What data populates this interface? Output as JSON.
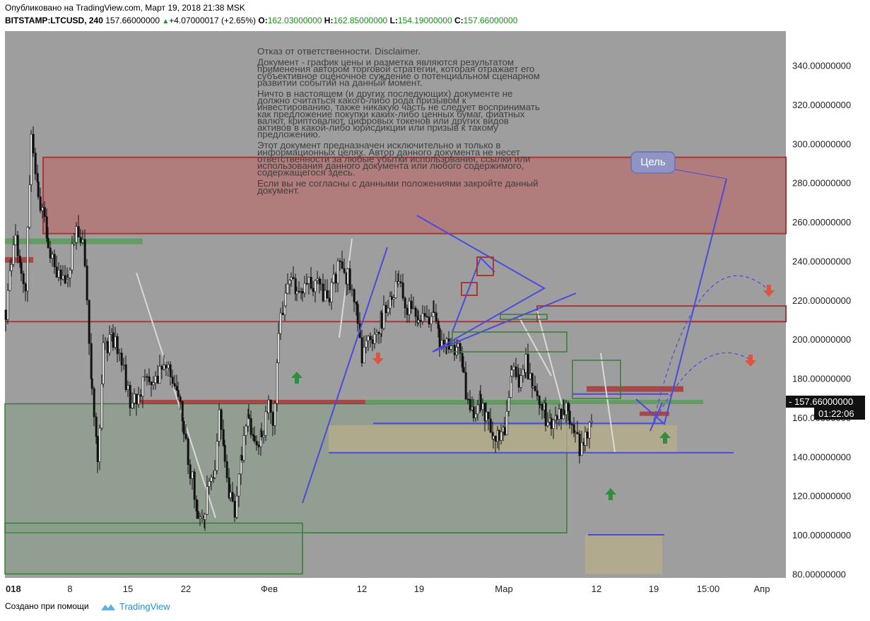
{
  "header": {
    "published": "Опубликовано на TradingView.com, Март 19, 2018 21:38 MSK",
    "symbol": "BITSTAMP:LTCUSD, 240",
    "last": "157.66000000",
    "change": "+4.07000017 (+2.65%)",
    "o_label": "O:",
    "o": "162.03000000",
    "h_label": "H:",
    "h": "162.85000000",
    "l_label": "L:",
    "l": "154.19000000",
    "c_label": "C:",
    "c": "157.66000000"
  },
  "disclaimer": [
    "Отказ от ответственности. Disclaimer.",
    "",
    "Документ - график цены и разметка являются результатом",
    "применения автором торговой стратегии, которая отражает его",
    "субъективное оценочное суждение о потенциальном сценарном",
    "развитии событий на данный момент.",
    "",
    "Ничто в настоящем (и других последующих) документе не",
    "должно считаться какого-либо рода призывом к",
    "инвестированию, также никакую часть не следует воспринимать",
    "как предложение покупки каких-либо ценных бумаг, фиатных",
    "валют, криптовалют, цифровых токенов или других видов",
    "активов в какой-либо юрисдикции или призыв к такому",
    "предложению.",
    "",
    "Этот документ предназначен исключительно и только в",
    "информационных целях. Автор данного документа не несет",
    "ответственности за любые убытки использования, ссылки или",
    "использования данного документа или любого содержимого,",
    "содержащегося здесь.",
    "",
    "Если вы не согласны с данными положениями закройте данный",
    "документ."
  ],
  "target_label": "Цель",
  "price_tag": "157.66000000",
  "time_tag": "01:22:06",
  "footer": {
    "created": "Создано при помощи",
    "brand": "TradingView"
  },
  "colors": {
    "plot_bg": "#9e9e9e",
    "red_zone": "#b07c7c",
    "red_line": "#a83838",
    "green_line": "#3a7a3a",
    "blue": "#4a4adc",
    "yellow_zone": "#b8ae8a",
    "green_arrow": "#2f8f3f",
    "red_arrow": "#e0543e"
  },
  "chart_data": {
    "type": "candlestick",
    "yticks": [
      "340.00000000",
      "320.00000000",
      "300.00000000",
      "280.00000000",
      "260.00000000",
      "240.00000000",
      "220.00000000",
      "200.00000000",
      "180.00000000",
      "160.00000000",
      "140.00000000",
      "120.00000000",
      "100.00000000",
      "80.00000000"
    ],
    "ylim": [
      75,
      353
    ],
    "xticks": [
      "018",
      "8",
      "15",
      "22",
      "Фев",
      "12",
      "19",
      "Мар",
      "12",
      "19",
      "15:00",
      "Апр"
    ],
    "close_path": [
      [
        0,
        215
      ],
      [
        8,
        240
      ],
      [
        14,
        250
      ],
      [
        22,
        232
      ],
      [
        28,
        228
      ],
      [
        36,
        300
      ],
      [
        46,
        275
      ],
      [
        60,
        250
      ],
      [
        72,
        235
      ],
      [
        88,
        232
      ],
      [
        100,
        260
      ],
      [
        112,
        242
      ],
      [
        122,
        170
      ],
      [
        130,
        138
      ],
      [
        138,
        195
      ],
      [
        152,
        200
      ],
      [
        164,
        190
      ],
      [
        176,
        168
      ],
      [
        188,
        172
      ],
      [
        200,
        180
      ],
      [
        212,
        178
      ],
      [
        224,
        187
      ],
      [
        236,
        180
      ],
      [
        244,
        172
      ],
      [
        252,
        150
      ],
      [
        264,
        128
      ],
      [
        272,
        108
      ],
      [
        282,
        112
      ],
      [
        288,
        130
      ],
      [
        296,
        128
      ],
      [
        302,
        160
      ],
      [
        310,
        138
      ],
      [
        318,
        118
      ],
      [
        324,
        108
      ],
      [
        334,
        140
      ],
      [
        344,
        160
      ],
      [
        352,
        145
      ],
      [
        362,
        150
      ],
      [
        372,
        165
      ],
      [
        378,
        152
      ],
      [
        386,
        205
      ],
      [
        396,
        222
      ],
      [
        404,
        232
      ],
      [
        412,
        222
      ],
      [
        420,
        225
      ],
      [
        432,
        230
      ],
      [
        446,
        225
      ],
      [
        458,
        220
      ],
      [
        470,
        238
      ],
      [
        484,
        232
      ],
      [
        498,
        210
      ],
      [
        504,
        190
      ],
      [
        516,
        200
      ],
      [
        532,
        210
      ],
      [
        546,
        222
      ],
      [
        556,
        228
      ],
      [
        568,
        216
      ],
      [
        584,
        212
      ],
      [
        596,
        208
      ],
      [
        606,
        215
      ],
      [
        614,
        198
      ],
      [
        624,
        202
      ],
      [
        632,
        192
      ],
      [
        640,
        200
      ],
      [
        648,
        183
      ],
      [
        654,
        165
      ],
      [
        662,
        162
      ],
      [
        672,
        168
      ],
      [
        680,
        158
      ],
      [
        690,
        150
      ],
      [
        698,
        148
      ],
      [
        706,
        155
      ],
      [
        716,
        184
      ],
      [
        726,
        180
      ],
      [
        736,
        188
      ],
      [
        746,
        176
      ],
      [
        756,
        170
      ],
      [
        764,
        160
      ],
      [
        772,
        155
      ],
      [
        780,
        163
      ],
      [
        790,
        165
      ],
      [
        798,
        160
      ],
      [
        806,
        152
      ],
      [
        812,
        142
      ],
      [
        820,
        148
      ],
      [
        826,
        154
      ],
      [
        832,
        158
      ]
    ],
    "zones": [
      {
        "kind": "red_box",
        "y0": 254,
        "y1": 293
      },
      {
        "kind": "red_band",
        "y": 217,
        "label": ""
      },
      {
        "kind": "green_box",
        "y0": 101,
        "y1": 167
      },
      {
        "kind": "green_box",
        "y0": 80,
        "y1": 106
      },
      {
        "kind": "yellow_box",
        "y0": 142,
        "y1": 156
      },
      {
        "kind": "yellow_box",
        "y0": 80,
        "y1": 100
      }
    ],
    "levels": [
      {
        "y": 209
      },
      {
        "y": 168
      },
      {
        "y": 142
      },
      {
        "y": 101
      }
    ]
  }
}
